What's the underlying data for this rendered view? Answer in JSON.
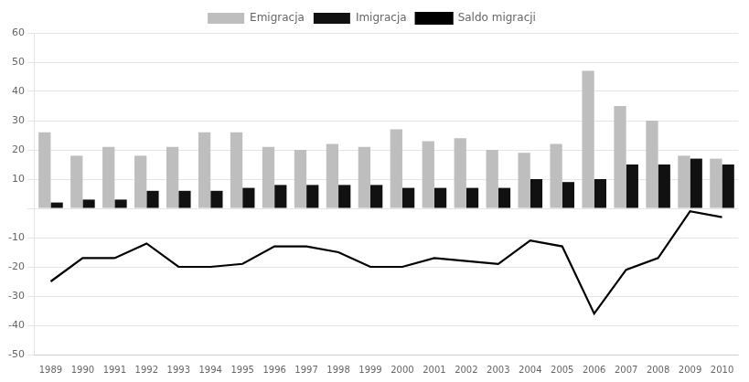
{
  "chart_data": {
    "type": "bar",
    "categories": [
      1989,
      1990,
      1991,
      1992,
      1993,
      1994,
      1995,
      1996,
      1997,
      1998,
      1999,
      2000,
      2001,
      2002,
      2003,
      2004,
      2005,
      2006,
      2007,
      2008,
      2009,
      2010
    ],
    "series": [
      {
        "name": "Emigracja",
        "type": "bar",
        "color": "#bebebe",
        "values": [
          26,
          18,
          21,
          18,
          21,
          26,
          26,
          21,
          20,
          22,
          21,
          27,
          23,
          24,
          20,
          19,
          22,
          47,
          35,
          30,
          18,
          17
        ]
      },
      {
        "name": "Imigracja",
        "type": "bar",
        "color": "#111111",
        "values": [
          2,
          3,
          3,
          6,
          6,
          6,
          7,
          8,
          8,
          8,
          8,
          7,
          7,
          7,
          7,
          10,
          9,
          10,
          15,
          15,
          17,
          15
        ]
      },
      {
        "name": "Saldo migracji",
        "type": "line",
        "color": "#000000",
        "values": [
          -25,
          -17,
          -17,
          -12,
          -20,
          -20,
          -19,
          -13,
          -13,
          -15,
          -20,
          -20,
          -17,
          -18,
          -19,
          -11,
          -13,
          -36,
          -21,
          -17,
          -1,
          -3
        ]
      }
    ],
    "ylim": [
      -50,
      60
    ],
    "yticks": [
      -50,
      -40,
      -30,
      -20,
      -10,
      {
        "value": 0,
        "label": ""
      },
      10,
      20,
      30,
      40,
      50,
      60
    ],
    "grid": true,
    "legend": "top"
  }
}
